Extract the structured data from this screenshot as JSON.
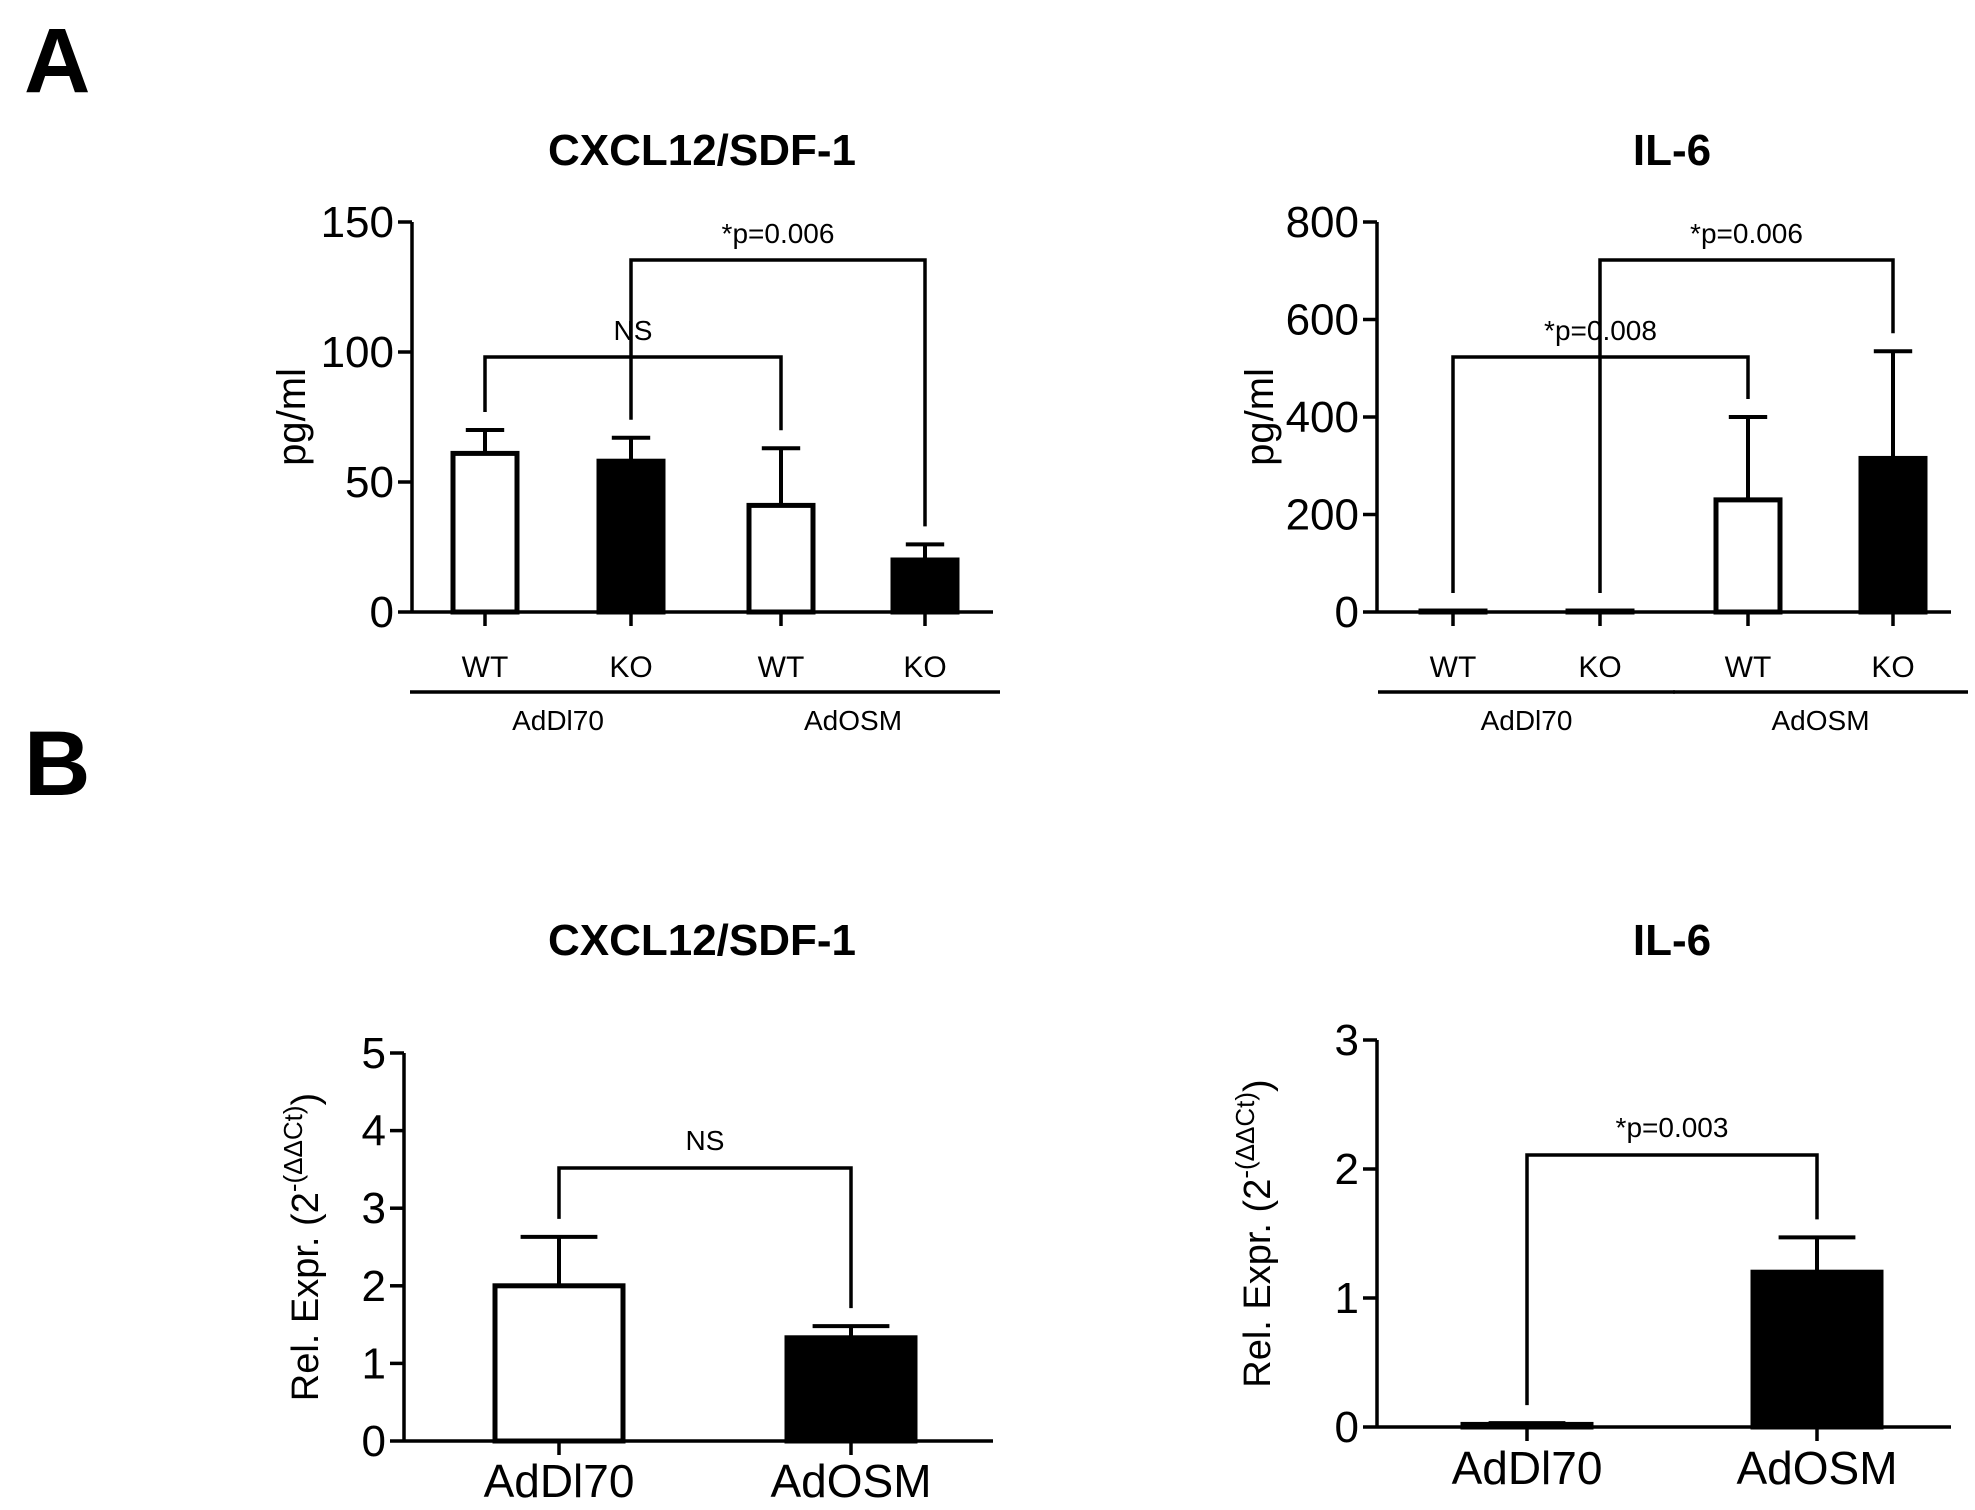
{
  "panels": {
    "a": "A",
    "b": "B"
  },
  "colors": {
    "bar_fill_open": "#ffffff",
    "bar_fill_solid": "#000000",
    "stroke": "#000000"
  },
  "chart_data": [
    {
      "type": "bar",
      "panel": "A",
      "title": "CXCL12/SDF-1",
      "ylabel": "pg/ml",
      "ylim": [
        0,
        150
      ],
      "yticks": [
        0,
        50,
        100,
        150
      ],
      "categories": [
        "WT",
        "KO",
        "WT",
        "KO"
      ],
      "groups": [
        {
          "label": "AdDl70",
          "categories": [
            0,
            1
          ]
        },
        {
          "label": "AdOSM",
          "categories": [
            2,
            3
          ]
        }
      ],
      "values": [
        61,
        58,
        41,
        20
      ],
      "errors": [
        9,
        9,
        22,
        6
      ],
      "fills": [
        "open",
        "solid",
        "open",
        "solid"
      ],
      "annotations": [
        {
          "text": "NS",
          "from": 0,
          "to": 2
        },
        {
          "text": "*p=0.006",
          "from": 1,
          "to": 3
        }
      ]
    },
    {
      "type": "bar",
      "panel": "A",
      "title": "IL-6",
      "ylabel": "pg/ml",
      "ylim": [
        0,
        800
      ],
      "yticks": [
        0,
        200,
        400,
        600,
        800
      ],
      "categories": [
        "WT",
        "KO",
        "WT",
        "KO"
      ],
      "groups": [
        {
          "label": "AdDl70",
          "categories": [
            0,
            1
          ]
        },
        {
          "label": "AdOSM",
          "categories": [
            2,
            3
          ]
        }
      ],
      "values": [
        2,
        2,
        230,
        315
      ],
      "errors": [
        0,
        0,
        170,
        220
      ],
      "fills": [
        "open",
        "solid",
        "open",
        "solid"
      ],
      "annotations": [
        {
          "text": "*p=0.008",
          "from": 0,
          "to": 2
        },
        {
          "text": "*p=0.006",
          "from": 1,
          "to": 3
        }
      ]
    },
    {
      "type": "bar",
      "panel": "B",
      "title": "CXCL12/SDF-1",
      "ylabel": "Rel. Expr. (2",
      "ylabel_sup": "-(ΔΔCt)",
      "ylabel_end": ")",
      "ylim": [
        0,
        5
      ],
      "yticks": [
        0,
        1,
        2,
        3,
        4,
        5
      ],
      "categories": [
        "AdDl70",
        "AdOSM"
      ],
      "values": [
        2.0,
        1.33
      ],
      "errors": [
        0.63,
        0.15
      ],
      "fills": [
        "open",
        "solid"
      ],
      "annotations": [
        {
          "text": "NS",
          "from": 0,
          "to": 1
        }
      ]
    },
    {
      "type": "bar",
      "panel": "B",
      "title": "IL-6",
      "ylabel": "Rel. Expr. (2",
      "ylabel_sup": "-(ΔΔCt)",
      "ylabel_end": ")",
      "ylim": [
        0,
        3
      ],
      "yticks": [
        0,
        1,
        2,
        3
      ],
      "categories": [
        "AdDl70",
        "AdOSM"
      ],
      "values": [
        0.02,
        1.2
      ],
      "errors": [
        0.01,
        0.27
      ],
      "fills": [
        "solid",
        "solid"
      ],
      "annotations": [
        {
          "text": "*p=0.003",
          "from": 0,
          "to": 1
        }
      ]
    }
  ]
}
